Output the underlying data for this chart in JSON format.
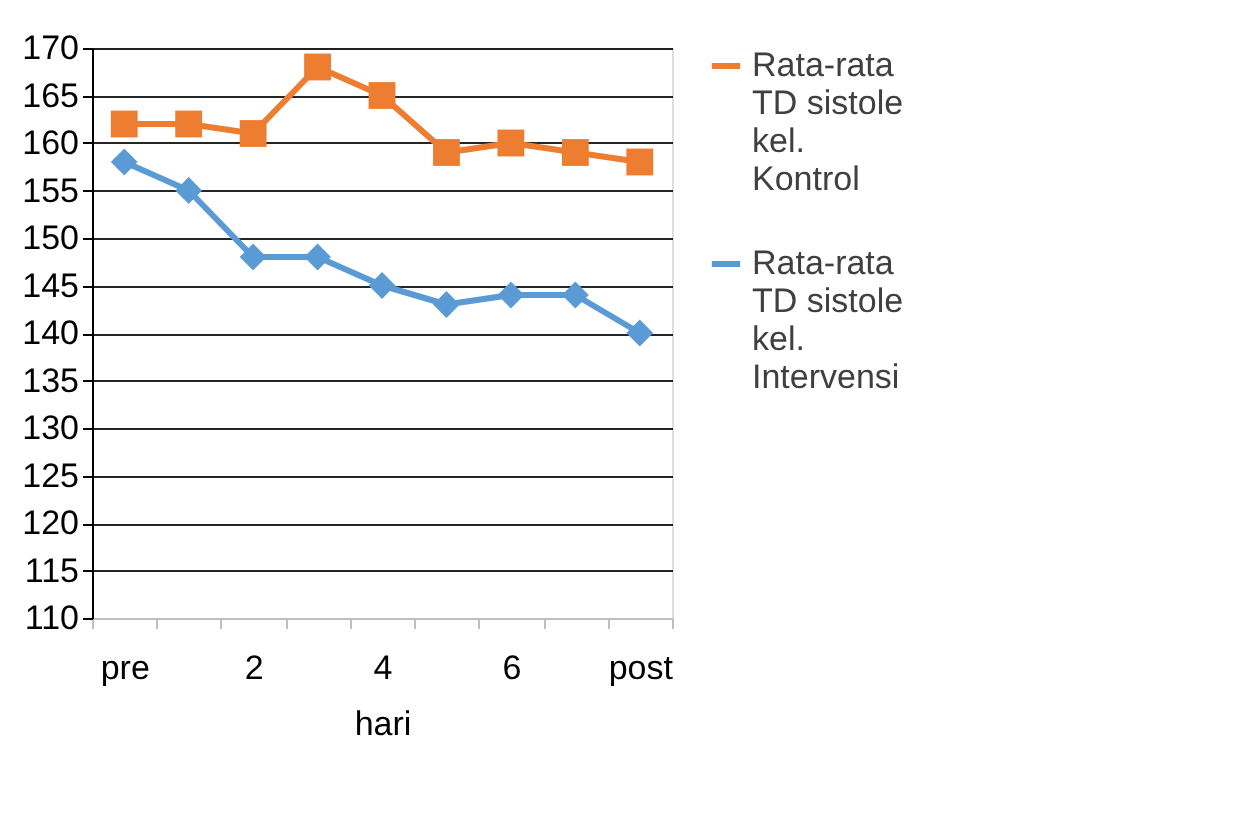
{
  "chart_data": {
    "type": "line",
    "xlabel": "hari",
    "categories": [
      "pre",
      null,
      "2",
      null,
      "4",
      null,
      "6",
      null,
      "post"
    ],
    "series": [
      {
        "name": "Rata-rata TD sistole kel. Kontrol",
        "color": "#ed7d31",
        "marker": "square",
        "values": [
          162,
          162,
          161,
          168,
          165,
          159,
          160,
          159,
          158
        ]
      },
      {
        "name": "Rata-rata TD sistole kel. Intervensi",
        "color": "#5b9bd5",
        "marker": "diamond",
        "values": [
          158,
          155,
          148,
          148,
          145,
          143,
          144,
          144,
          140
        ]
      }
    ],
    "ylim": [
      110,
      170
    ],
    "yticks": [
      110,
      115,
      120,
      125,
      130,
      135,
      140,
      145,
      150,
      155,
      160,
      165,
      170
    ],
    "grid": "y",
    "legend": "right"
  }
}
